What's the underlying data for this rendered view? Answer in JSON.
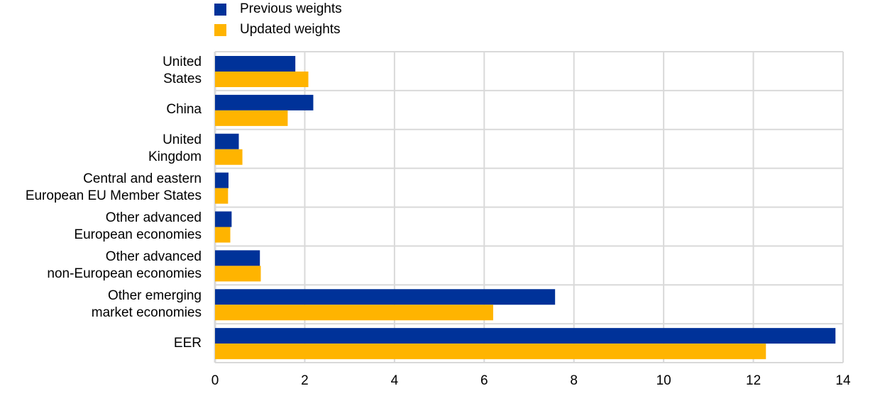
{
  "chart_data": {
    "type": "bar",
    "orientation": "horizontal",
    "title": "",
    "xlabel": "",
    "ylabel": "",
    "categories": [
      [
        "United",
        "States"
      ],
      [
        "China"
      ],
      [
        "United",
        "Kingdom"
      ],
      [
        "Central and eastern",
        "European EU Member States"
      ],
      [
        "Other advanced",
        "European economies"
      ],
      [
        "Other advanced",
        "non-European economies"
      ],
      [
        "Other emerging",
        "market economies"
      ],
      [
        "EER"
      ]
    ],
    "series": [
      {
        "name": "Previous weights",
        "color": "#003299",
        "values": [
          1.79,
          2.19,
          0.53,
          0.3,
          0.37,
          1.0,
          7.58,
          13.83
        ]
      },
      {
        "name": "Updated weights",
        "color": "#FFB400",
        "values": [
          2.08,
          1.62,
          0.61,
          0.29,
          0.34,
          1.02,
          6.2,
          12.28
        ]
      }
    ],
    "xlim": [
      0,
      14
    ],
    "xticks": [
      "0",
      "2",
      "4",
      "6",
      "8",
      "10",
      "12",
      "14"
    ],
    "grid": true,
    "legend_position": "top-left"
  }
}
